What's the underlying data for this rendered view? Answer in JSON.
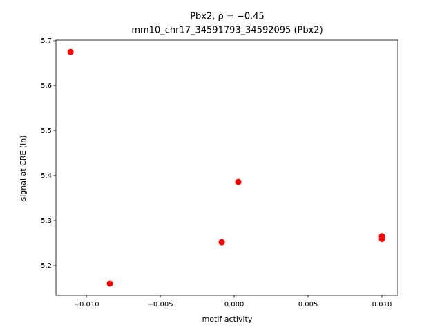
{
  "chart_data": {
    "type": "scatter",
    "title": [
      "Pbx2, ρ = −0.45",
      "mm10_chr17_34591793_34592095 (Pbx2)"
    ],
    "xlabel": "motif activity",
    "ylabel": "signal at CRE (ln)",
    "x": [
      -0.01107,
      -0.00841,
      -0.00084,
      0.00028,
      0.01,
      0.01
    ],
    "values": [
      5.675,
      5.16,
      5.252,
      5.386,
      5.265,
      5.259
    ],
    "color": "#ff0000",
    "xlim": [
      -0.01206,
      0.011075
    ],
    "ylim": [
      5.1338,
      5.7015
    ],
    "xticks": [
      {
        "value": -0.01,
        "label": "−0.010"
      },
      {
        "value": -0.005,
        "label": "−0.005"
      },
      {
        "value": 0,
        "label": "0.000"
      },
      0.005,
      {
        "value": 0.01,
        "label": "0.010"
      }
    ],
    "yticks": [
      5.2,
      5.3,
      5.4,
      5.5,
      5.6,
      5.7
    ]
  }
}
